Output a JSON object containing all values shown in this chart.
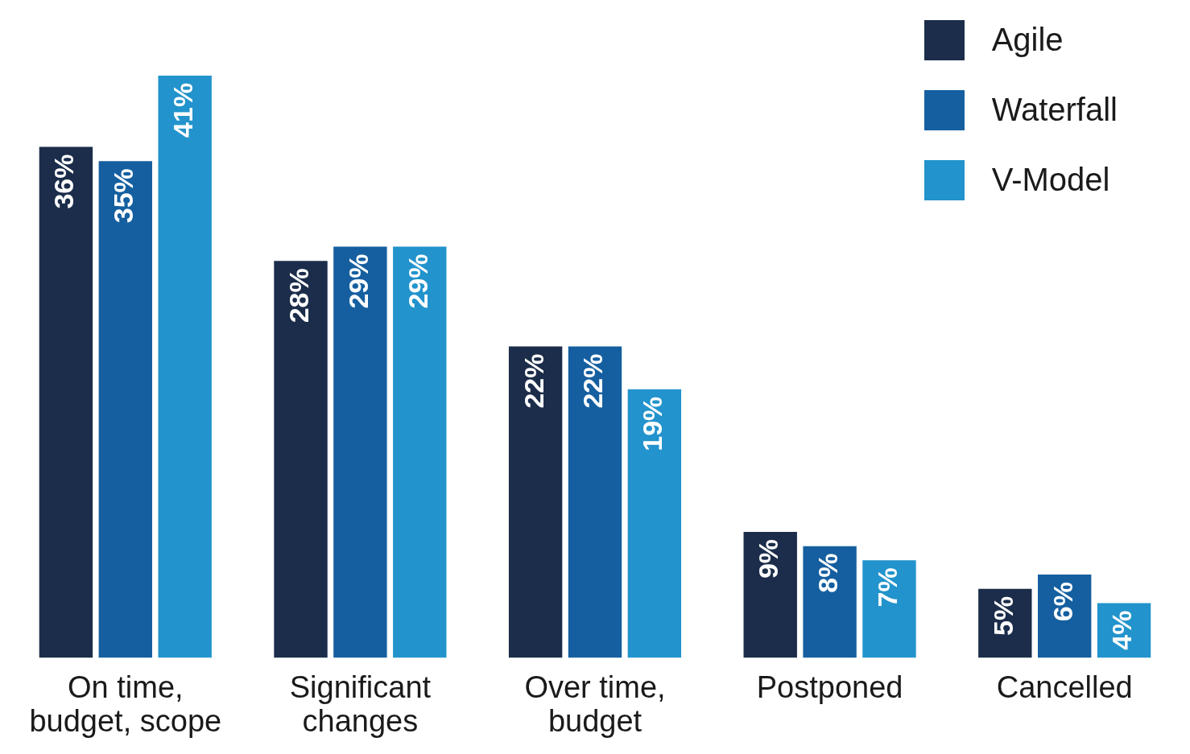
{
  "chart_data": {
    "type": "bar",
    "categories": [
      "On time,\nbudget, scope",
      "Significant\nchanges",
      "Over time,\nbudget",
      "Postponed",
      "Cancelled"
    ],
    "series": [
      {
        "name": "Agile",
        "color": "#1b2d4a",
        "values": [
          36,
          28,
          22,
          9,
          5
        ],
        "value_labels": [
          "36%",
          "28%",
          "22%",
          "9%",
          "5%"
        ]
      },
      {
        "name": "Waterfall",
        "color": "#155fa0",
        "values": [
          35,
          29,
          22,
          8,
          6
        ],
        "value_labels": [
          "35%",
          "29%",
          "22%",
          "8%",
          "6%"
        ]
      },
      {
        "name": "V-Model",
        "color": "#2293cc",
        "values": [
          41,
          29,
          19,
          7,
          4
        ],
        "value_labels": [
          "41%",
          "29%",
          "19%",
          "7%",
          "4%"
        ]
      }
    ],
    "grid": false,
    "legend": "top right",
    "tick_labels": "x"
  }
}
